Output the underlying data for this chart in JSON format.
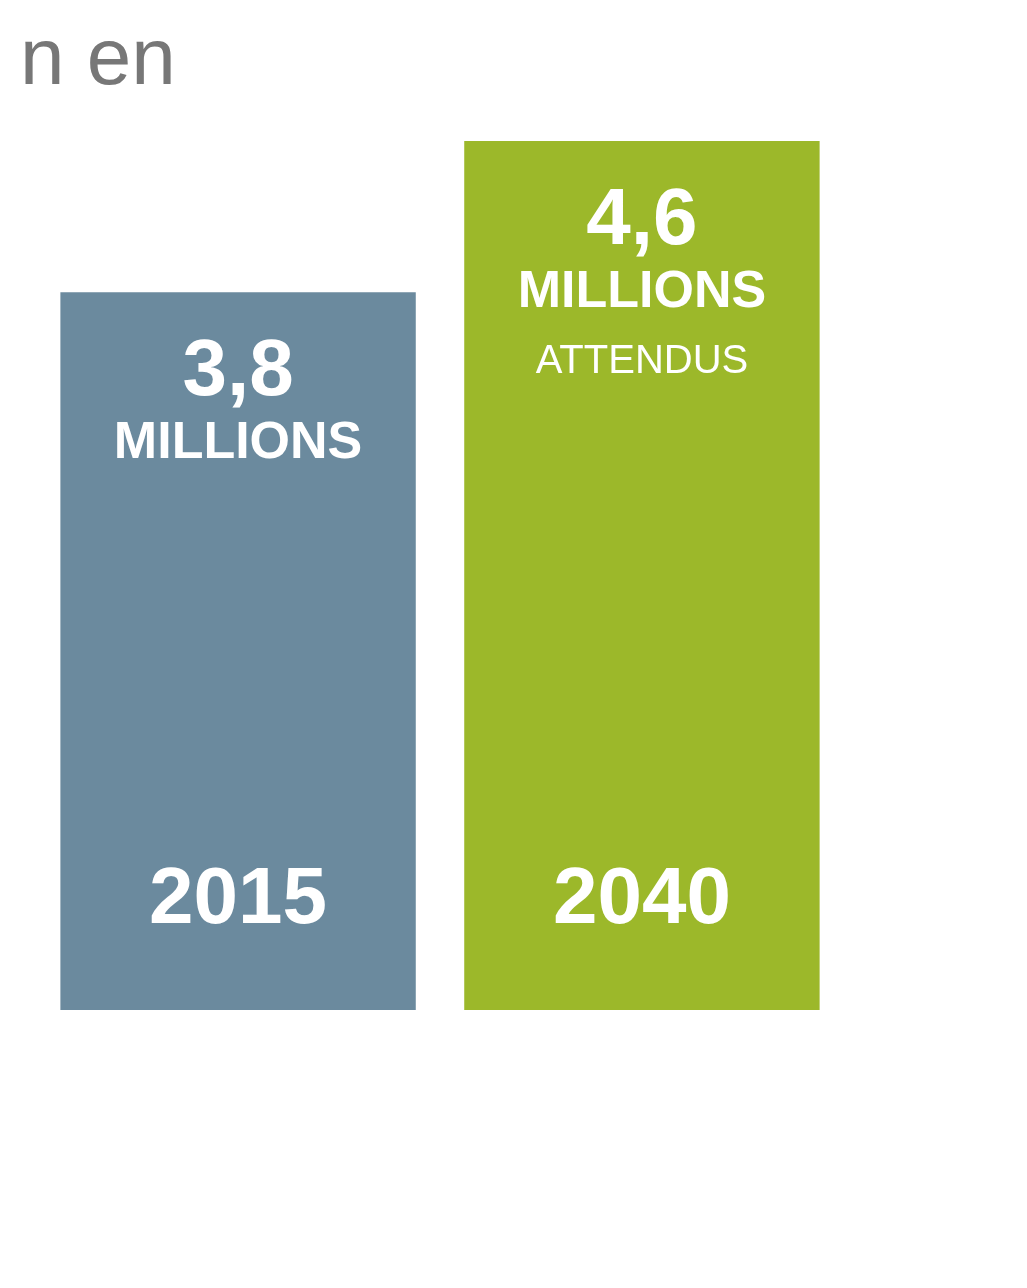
{
  "chart_data": {
    "type": "bar",
    "title": "n en",
    "categories": [
      "2015",
      "2040"
    ],
    "values": [
      3.8,
      4.6
    ],
    "colors": [
      "#6b8a9e",
      "#9cb82a"
    ],
    "value_labels": [
      "3,8",
      "4,6"
    ],
    "annotations": [
      {
        "text": "MILLIONS",
        "x": "2015",
        "y": 3.8
      },
      {
        "text": "MILLIONS",
        "x": "2040",
        "y": 4.6
      },
      "ATTENDUS"
    ]
  }
}
